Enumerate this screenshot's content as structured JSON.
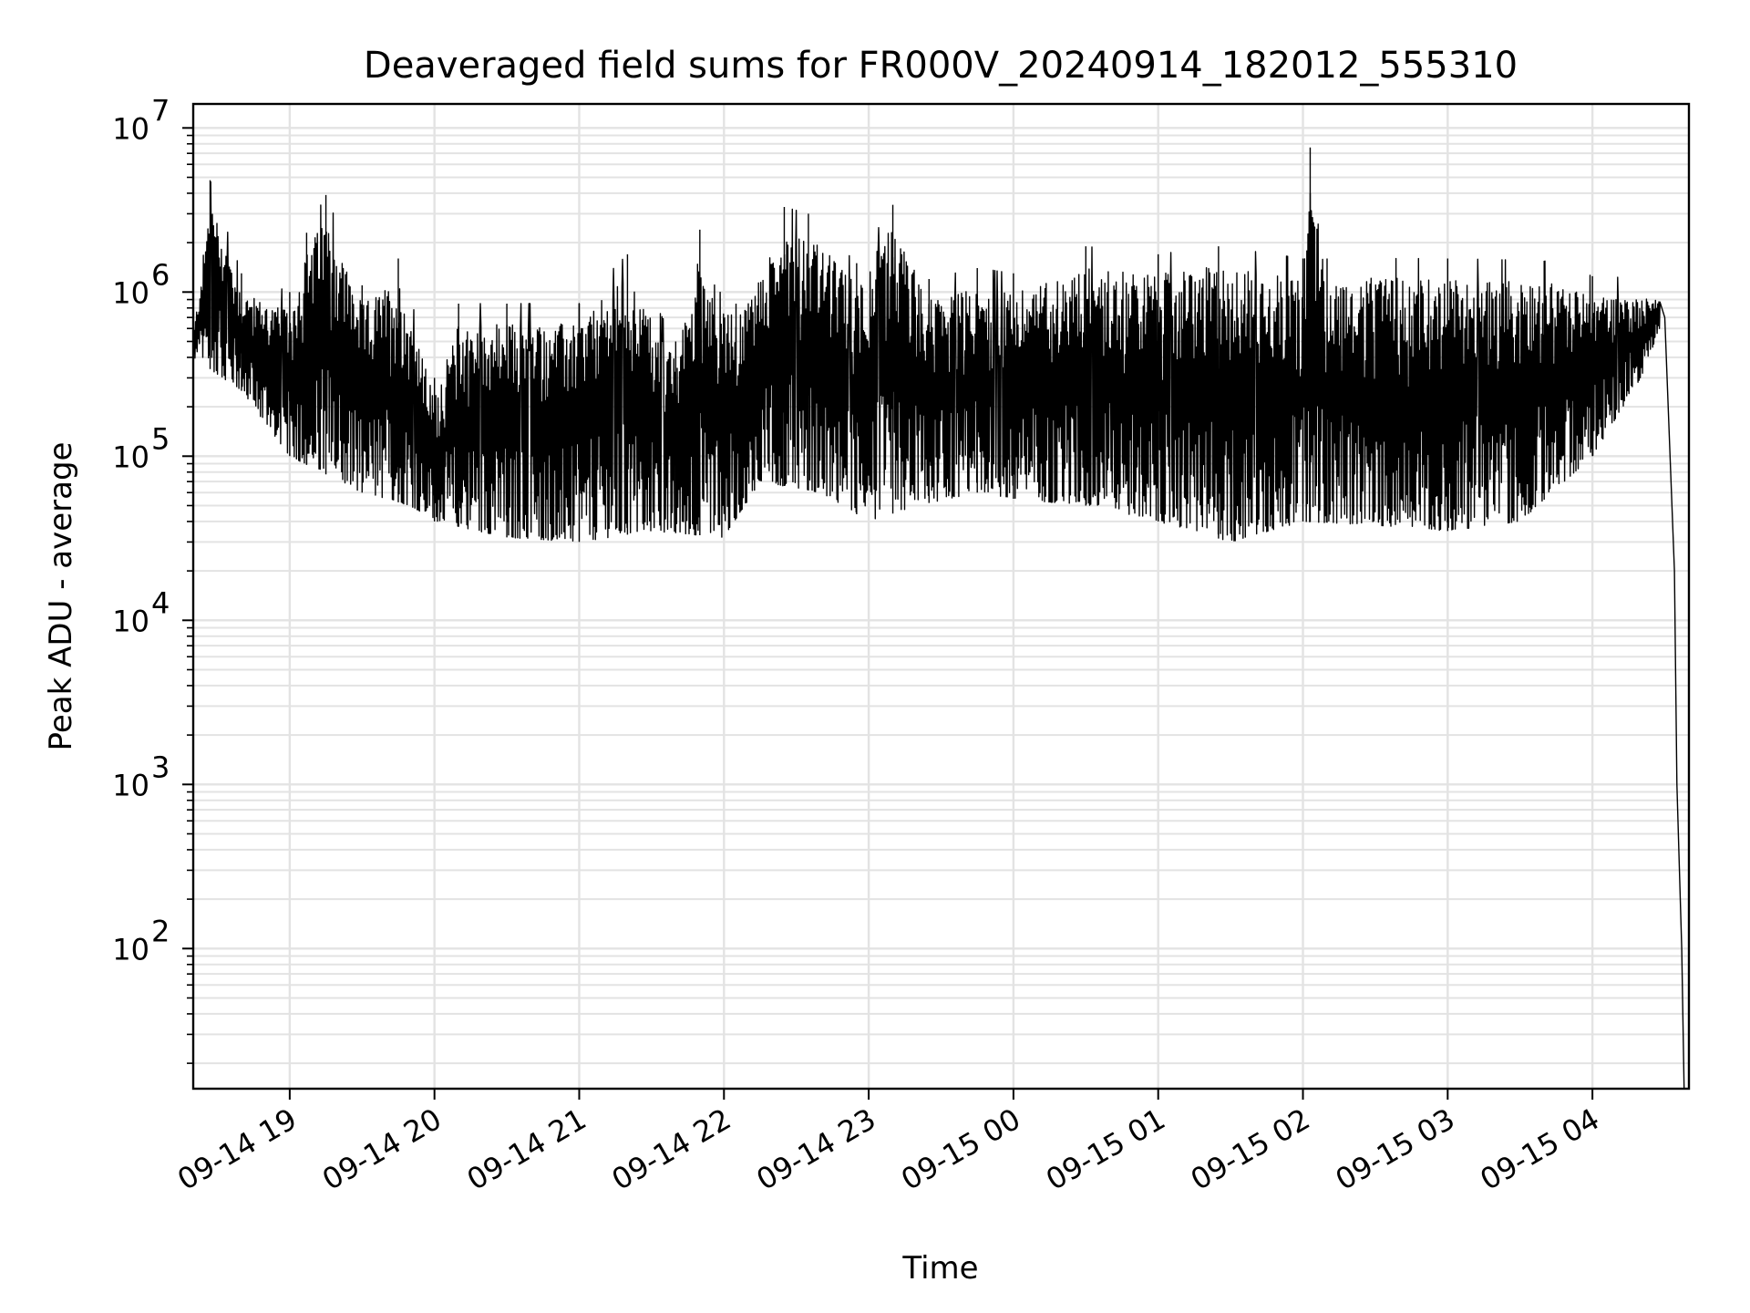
{
  "chart_data": {
    "type": "line",
    "title": "Deaveraged field sums for FR000V_20240914_182012_555310",
    "xlabel": "Time",
    "ylabel": "Peak ADU - average",
    "y_scale": "log",
    "ylim": [
      14,
      14000000
    ],
    "xlim": [
      "2024-09-14 18:20",
      "2024-09-15 04:40"
    ],
    "x_ticks": [
      {
        "t": "2024-09-14 19:00",
        "label": "09-14 19"
      },
      {
        "t": "2024-09-14 20:00",
        "label": "09-14 20"
      },
      {
        "t": "2024-09-14 21:00",
        "label": "09-14 21"
      },
      {
        "t": "2024-09-14 22:00",
        "label": "09-14 22"
      },
      {
        "t": "2024-09-14 23:00",
        "label": "09-14 23"
      },
      {
        "t": "2024-09-15 00:00",
        "label": "09-15 00"
      },
      {
        "t": "2024-09-15 01:00",
        "label": "09-15 01"
      },
      {
        "t": "2024-09-15 02:00",
        "label": "09-15 02"
      },
      {
        "t": "2024-09-15 03:00",
        "label": "09-15 03"
      },
      {
        "t": "2024-09-15 04:00",
        "label": "09-15 04"
      }
    ],
    "y_ticks": [
      {
        "value": 100,
        "base": "10",
        "exp": "2"
      },
      {
        "value": 1000,
        "base": "10",
        "exp": "3"
      },
      {
        "value": 10000,
        "base": "10",
        "exp": "4"
      },
      {
        "value": 100000,
        "base": "10",
        "exp": "5"
      },
      {
        "value": 1000000,
        "base": "10",
        "exp": "6"
      },
      {
        "value": 10000000,
        "base": "10",
        "exp": "7"
      }
    ],
    "grid": true,
    "line_color": "#000000",
    "grid_color": "#e3e3e3",
    "series": [
      {
        "envelope_upper": [
          [
            "2024-09-14 18:20",
            700000
          ],
          [
            "2024-09-14 18:27",
            4800000
          ],
          [
            "2024-09-14 18:40",
            1300000
          ],
          [
            "2024-09-14 19:00",
            1000000
          ],
          [
            "2024-09-14 19:07",
            2300000
          ],
          [
            "2024-09-14 19:15",
            3900000
          ],
          [
            "2024-09-14 19:30",
            1100000
          ],
          [
            "2024-09-14 19:45",
            1600000
          ],
          [
            "2024-09-14 20:00",
            300000
          ],
          [
            "2024-09-14 20:10",
            850000
          ],
          [
            "2024-09-14 20:30",
            850000
          ],
          [
            "2024-09-14 21:00",
            850000
          ],
          [
            "2024-09-14 21:20",
            1700000
          ],
          [
            "2024-09-14 21:40",
            500000
          ],
          [
            "2024-09-14 21:50",
            2400000
          ],
          [
            "2024-09-14 22:05",
            850000
          ],
          [
            "2024-09-14 22:25",
            3300000
          ],
          [
            "2024-09-14 22:35",
            3000000
          ],
          [
            "2024-09-14 22:55",
            1500000
          ],
          [
            "2024-09-14 23:10",
            3400000
          ],
          [
            "2024-09-14 23:25",
            1200000
          ],
          [
            "2024-09-14 23:45",
            1400000
          ],
          [
            "2024-09-15 00:00",
            1300000
          ],
          [
            "2024-09-15 00:30",
            1900000
          ],
          [
            "2024-09-15 01:00",
            1700000
          ],
          [
            "2024-09-15 01:25",
            1900000
          ],
          [
            "2024-09-15 02:00",
            1600000
          ],
          [
            "2024-09-15 02:03",
            7600000
          ],
          [
            "2024-09-15 02:10",
            1600000
          ],
          [
            "2024-09-15 03:00",
            1600000
          ],
          [
            "2024-09-15 03:40",
            1550000
          ],
          [
            "2024-09-15 04:00",
            1250000
          ],
          [
            "2024-09-15 04:28",
            1200000
          ],
          [
            "2024-09-15 04:30",
            700000
          ],
          [
            "2024-09-15 04:34",
            20000
          ],
          [
            "2024-09-15 04:35",
            1000
          ],
          [
            "2024-09-15 04:37",
            100
          ],
          [
            "2024-09-15 04:38",
            14
          ]
        ],
        "envelope_lower": [
          [
            "2024-09-14 18:20",
            400000
          ],
          [
            "2024-09-14 18:40",
            250000
          ],
          [
            "2024-09-14 19:00",
            100000
          ],
          [
            "2024-09-14 19:30",
            60000
          ],
          [
            "2024-09-14 19:50",
            50000
          ],
          [
            "2024-09-14 20:00",
            40000
          ],
          [
            "2024-09-14 20:30",
            32000
          ],
          [
            "2024-09-14 21:00",
            30000
          ],
          [
            "2024-09-14 21:30",
            35000
          ],
          [
            "2024-09-14 22:00",
            32000
          ],
          [
            "2024-09-14 22:15",
            70000
          ],
          [
            "2024-09-14 22:40",
            60000
          ],
          [
            "2024-09-14 23:00",
            40000
          ],
          [
            "2024-09-14 23:20",
            50000
          ],
          [
            "2024-09-14 23:45",
            60000
          ],
          [
            "2024-09-15 00:00",
            55000
          ],
          [
            "2024-09-15 00:30",
            50000
          ],
          [
            "2024-09-15 01:00",
            40000
          ],
          [
            "2024-09-15 01:30",
            30000
          ],
          [
            "2024-09-15 02:00",
            40000
          ],
          [
            "2024-09-15 02:30",
            38000
          ],
          [
            "2024-09-15 03:00",
            35000
          ],
          [
            "2024-09-15 03:30",
            40000
          ],
          [
            "2024-09-15 04:00",
            100000
          ],
          [
            "2024-09-15 04:20",
            300000
          ],
          [
            "2024-09-15 04:28",
            600000
          ]
        ]
      }
    ]
  }
}
